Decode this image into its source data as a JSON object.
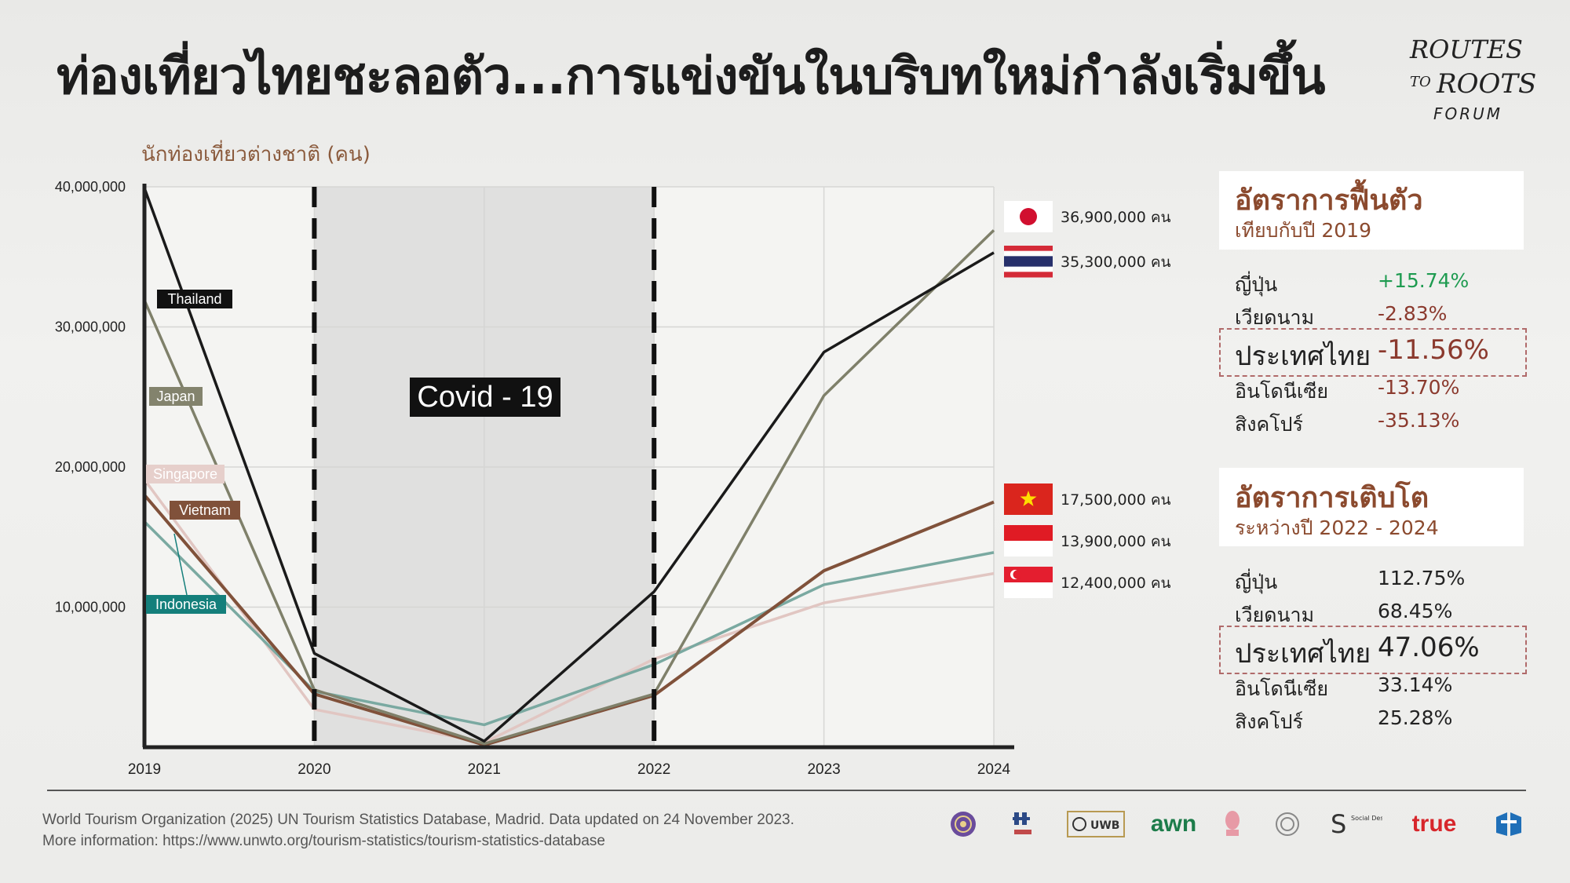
{
  "headline": "ท่องเที่ยวไทยชะลอตัว...การแข่งขันในบริบทใหม่กำลังเริ่มขึ้น",
  "brand": {
    "line1": "ROUTES",
    "line2a": "TO",
    "line2b": "ROOTS",
    "line3": "FORUM"
  },
  "chart_data": {
    "type": "line",
    "ylabel": "นักท่องเที่ยวต่างชาติ (คน)",
    "x": [
      "2019",
      "2020",
      "2021",
      "2022",
      "2023",
      "2024"
    ],
    "ylim": [
      0,
      40000000
    ],
    "y_ticks": [
      "10,000,000",
      "20,000,000",
      "30,000,000",
      "40,000,000"
    ],
    "grid": true,
    "shaded_period": {
      "label": "Covid - 19",
      "from": "2020",
      "to": "2022"
    },
    "series": [
      {
        "name": "Thailand",
        "color": "#1a1a1a",
        "values": [
          39900000,
          6700000,
          430000,
          11100000,
          28200000,
          35300000
        ],
        "end_label": "35,300,000 คน",
        "flag": "thailand"
      },
      {
        "name": "Japan",
        "color": "#7f806a",
        "values": [
          31900000,
          4100000,
          250000,
          3800000,
          25100000,
          36900000
        ],
        "end_label": "36,900,000 คน",
        "flag": "japan"
      },
      {
        "name": "Singapore",
        "color": "#e1c6c2",
        "values": [
          19100000,
          2700000,
          330000,
          6300000,
          10300000,
          12400000
        ],
        "end_label": "12,400,000 คน",
        "flag": "singapore"
      },
      {
        "name": "Vietnam",
        "color": "#80513a",
        "values": [
          18000000,
          3800000,
          160000,
          3700000,
          12600000,
          17500000
        ],
        "end_label": "17,500,000 คน",
        "flag": "vietnam"
      },
      {
        "name": "Indonesia",
        "color": "#7aa9a1",
        "values": [
          16100000,
          4000000,
          1600000,
          5900000,
          11600000,
          13900000
        ],
        "end_label": "13,900,000 คน",
        "flag": "indonesia"
      }
    ]
  },
  "colors": {
    "title_accent": "#8b4a2e",
    "positive": "#1e9b50",
    "negative": "#8b3a2e",
    "highlight_border": "#b06a6a"
  },
  "recovery_panel": {
    "title": "อัตราการฟื้นตัว",
    "subtitle": "เทียบกับปี 2019",
    "rows": [
      {
        "country": "ญี่ปุ่น",
        "value": "+15.74%"
      },
      {
        "country": "เวียดนาม",
        "value": "-2.83%"
      },
      {
        "country": "ประเทศไทย",
        "value": "-11.56%"
      },
      {
        "country": "อินโดนีเซีย",
        "value": "-13.70%"
      },
      {
        "country": "สิงคโปร์",
        "value": "-35.13%"
      }
    ]
  },
  "growth_panel": {
    "title": "อัตราการเติบโต",
    "subtitle": "ระหว่างปี 2022 - 2024",
    "rows": [
      {
        "country": "ญี่ปุ่น",
        "value": "112.75%"
      },
      {
        "country": "เวียดนาม",
        "value": "68.45%"
      },
      {
        "country": "ประเทศไทย",
        "value": "47.06%"
      },
      {
        "country": "อินโดนีเซีย",
        "value": "33.14%"
      },
      {
        "country": "สิงคโปร์",
        "value": "25.28%"
      }
    ]
  },
  "source": {
    "line1": "World Tourism Organization (2025) UN Tourism Statistics Database, Madrid. Data updated on 24 November 2023.",
    "line2": "More information: https://www.unwto.org/tourism-statistics/tourism-statistics-database"
  },
  "partner_logos": {
    "awn_text": "awn",
    "true_text": "true",
    "sdl_text": "Social Design Lab",
    "uwb_text": "UWB"
  }
}
